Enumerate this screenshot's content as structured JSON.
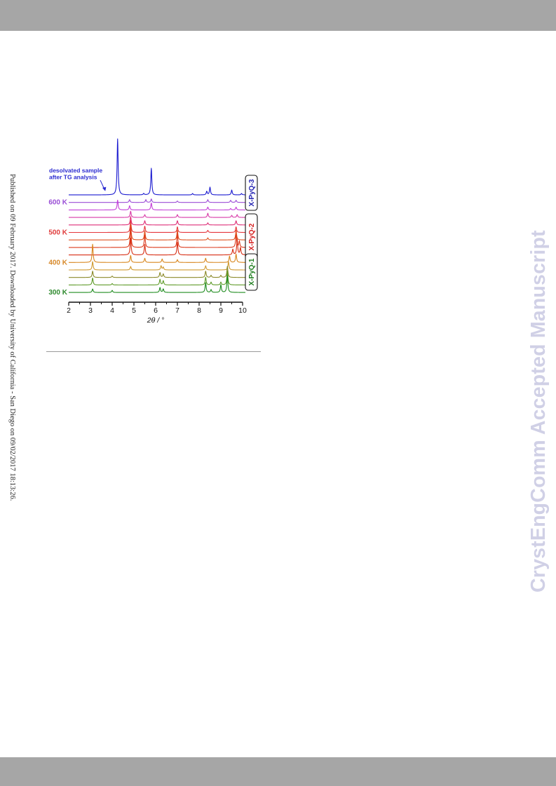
{
  "page": {
    "side_note": "Published on 09 February 2017. Downloaded by University of California - San Diego on 09/02/2017 18:13:26.",
    "watermark": "CrystEngComm Accepted Manuscript"
  },
  "chart_data": {
    "type": "line",
    "title": "",
    "xlabel": "2θ / °",
    "ylabel": "",
    "xlim": [
      2,
      10
    ],
    "xticks": [
      "2",
      "3",
      "4",
      "5",
      "6",
      "7",
      "8",
      "9",
      "10"
    ],
    "grid": false,
    "annotation": "desolvated sample after TG analysis",
    "annotation_lines": [
      "desolvated sample",
      "after TG analysis"
    ],
    "temperature_labels": [
      {
        "text": "600 K",
        "trace_index": 1,
        "color": "#9a4fd6"
      },
      {
        "text": "500 K",
        "trace_index": 5,
        "color": "#e03c3c"
      },
      {
        "text": "400 K",
        "trace_index": 9,
        "color": "#d7892a"
      },
      {
        "text": "300 K",
        "trace_index": 13,
        "color": "#2e8a2e"
      }
    ],
    "phases": [
      {
        "name": "X-PyQ-3",
        "color": "#1f1fb0",
        "trace_from": 0,
        "trace_to": 0
      },
      {
        "name": "X-PyQ-2",
        "color": "#d42020",
        "trace_from": 1,
        "trace_to": 8
      },
      {
        "name": "X-PyQ-1",
        "color": "#1e7d1e",
        "trace_from": 9,
        "trace_to": 13
      }
    ],
    "series": [
      {
        "color": "#1a1ad0",
        "peaks": [
          [
            4.25,
            80
          ],
          [
            5.8,
            38
          ],
          [
            5.45,
            2
          ],
          [
            7.7,
            2
          ],
          [
            8.35,
            5
          ],
          [
            8.5,
            11
          ],
          [
            9.5,
            7
          ],
          [
            9.95,
            2
          ]
        ]
      },
      {
        "color": "#9b4bd6",
        "peaks": [
          [
            4.8,
            4
          ],
          [
            5.55,
            4
          ],
          [
            5.8,
            5
          ],
          [
            7.0,
            2
          ],
          [
            8.4,
            4
          ],
          [
            9.45,
            3
          ],
          [
            9.7,
            3
          ]
        ]
      },
      {
        "color": "#c33dd8",
        "peaks": [
          [
            4.25,
            14
          ],
          [
            4.8,
            6
          ],
          [
            5.8,
            10
          ],
          [
            8.4,
            4
          ],
          [
            9.45,
            2
          ],
          [
            9.7,
            4
          ]
        ]
      },
      {
        "color": "#d83aa8",
        "peaks": [
          [
            4.85,
            9
          ],
          [
            5.5,
            4
          ],
          [
            7.0,
            4
          ],
          [
            8.4,
            6
          ],
          [
            9.5,
            3
          ],
          [
            9.75,
            4
          ]
        ]
      },
      {
        "color": "#de2f78",
        "peaks": [
          [
            4.85,
            12
          ],
          [
            5.5,
            6
          ],
          [
            7.0,
            6
          ],
          [
            8.4,
            3
          ],
          [
            9.7,
            6
          ]
        ]
      },
      {
        "color": "#e5363c",
        "peaks": [
          [
            4.85,
            17
          ],
          [
            5.5,
            9
          ],
          [
            7.0,
            8
          ],
          [
            8.4,
            3
          ],
          [
            9.7,
            8
          ]
        ]
      },
      {
        "color": "#e0521e",
        "peaks": [
          [
            4.85,
            22
          ],
          [
            5.5,
            13
          ],
          [
            7.0,
            14
          ],
          [
            8.4,
            3
          ],
          [
            9.7,
            14
          ]
        ]
      },
      {
        "color": "#dc3a1c",
        "peaks": [
          [
            4.85,
            28
          ],
          [
            5.5,
            18
          ],
          [
            7.0,
            20
          ],
          [
            9.7,
            18
          ],
          [
            9.85,
            9
          ]
        ]
      },
      {
        "color": "#d72e14",
        "peaks": [
          [
            4.85,
            24
          ],
          [
            5.5,
            15
          ],
          [
            7.0,
            18
          ],
          [
            9.55,
            8
          ],
          [
            9.75,
            22
          ],
          [
            9.9,
            10
          ]
        ]
      },
      {
        "color": "#d8861e",
        "peaks": [
          [
            3.1,
            26
          ],
          [
            4.85,
            10
          ],
          [
            5.5,
            6
          ],
          [
            6.3,
            5
          ],
          [
            7.0,
            4
          ],
          [
            8.3,
            6
          ],
          [
            9.4,
            9
          ],
          [
            9.7,
            12
          ]
        ]
      },
      {
        "color": "#d09a32",
        "peaks": [
          [
            3.1,
            12
          ],
          [
            4.85,
            5
          ],
          [
            6.25,
            6
          ],
          [
            6.35,
            4
          ],
          [
            8.3,
            6
          ],
          [
            9.35,
            12
          ]
        ]
      },
      {
        "color": "#8c8a2a",
        "peaks": [
          [
            3.1,
            9
          ],
          [
            4.0,
            2
          ],
          [
            6.2,
            7
          ],
          [
            6.35,
            5
          ],
          [
            8.3,
            9
          ],
          [
            8.55,
            3
          ],
          [
            9.0,
            3
          ],
          [
            9.3,
            16
          ]
        ]
      },
      {
        "color": "#5e9a28",
        "peaks": [
          [
            3.1,
            10
          ],
          [
            4.0,
            2
          ],
          [
            6.2,
            8
          ],
          [
            6.35,
            6
          ],
          [
            8.3,
            11
          ],
          [
            8.55,
            4
          ],
          [
            9.0,
            4
          ],
          [
            9.3,
            20
          ]
        ]
      },
      {
        "color": "#1f8c1f",
        "peaks": [
          [
            3.1,
            5
          ],
          [
            4.0,
            3
          ],
          [
            6.2,
            7
          ],
          [
            6.35,
            5
          ],
          [
            8.3,
            14
          ],
          [
            8.55,
            4
          ],
          [
            9.0,
            11
          ],
          [
            9.3,
            24
          ]
        ]
      }
    ]
  }
}
